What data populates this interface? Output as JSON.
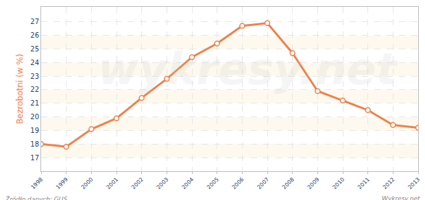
{
  "chart_data": {
    "type": "line",
    "y_label": "Bezrobotni (w %)",
    "x": [
      1998,
      1999,
      2000,
      2001,
      2002,
      2003,
      2004,
      2005,
      2006,
      2007,
      2008,
      2009,
      2010,
      2011,
      2012,
      2013
    ],
    "values": [
      18.0,
      17.8,
      19.1,
      19.9,
      21.4,
      22.8,
      24.4,
      25.4,
      26.7,
      26.9,
      24.7,
      21.9,
      21.2,
      20.5,
      19.4,
      19.2
    ],
    "color": "#f0804a",
    "marker": "circle",
    "xlim": [
      1998,
      2013
    ],
    "xticks": [
      1998,
      1999,
      2000,
      2001,
      2002,
      2003,
      2004,
      2005,
      2006,
      2007,
      2008,
      2009,
      2010,
      2011,
      2012,
      2013
    ],
    "ylim": [
      16,
      28.1
    ],
    "yticks": [
      17,
      18,
      19,
      20,
      21,
      22,
      23,
      24,
      25,
      26,
      27
    ],
    "grid": true,
    "annotations": [
      "Źródło danych: GUS",
      "Wykresy.net",
      "wykresy.net"
    ]
  }
}
